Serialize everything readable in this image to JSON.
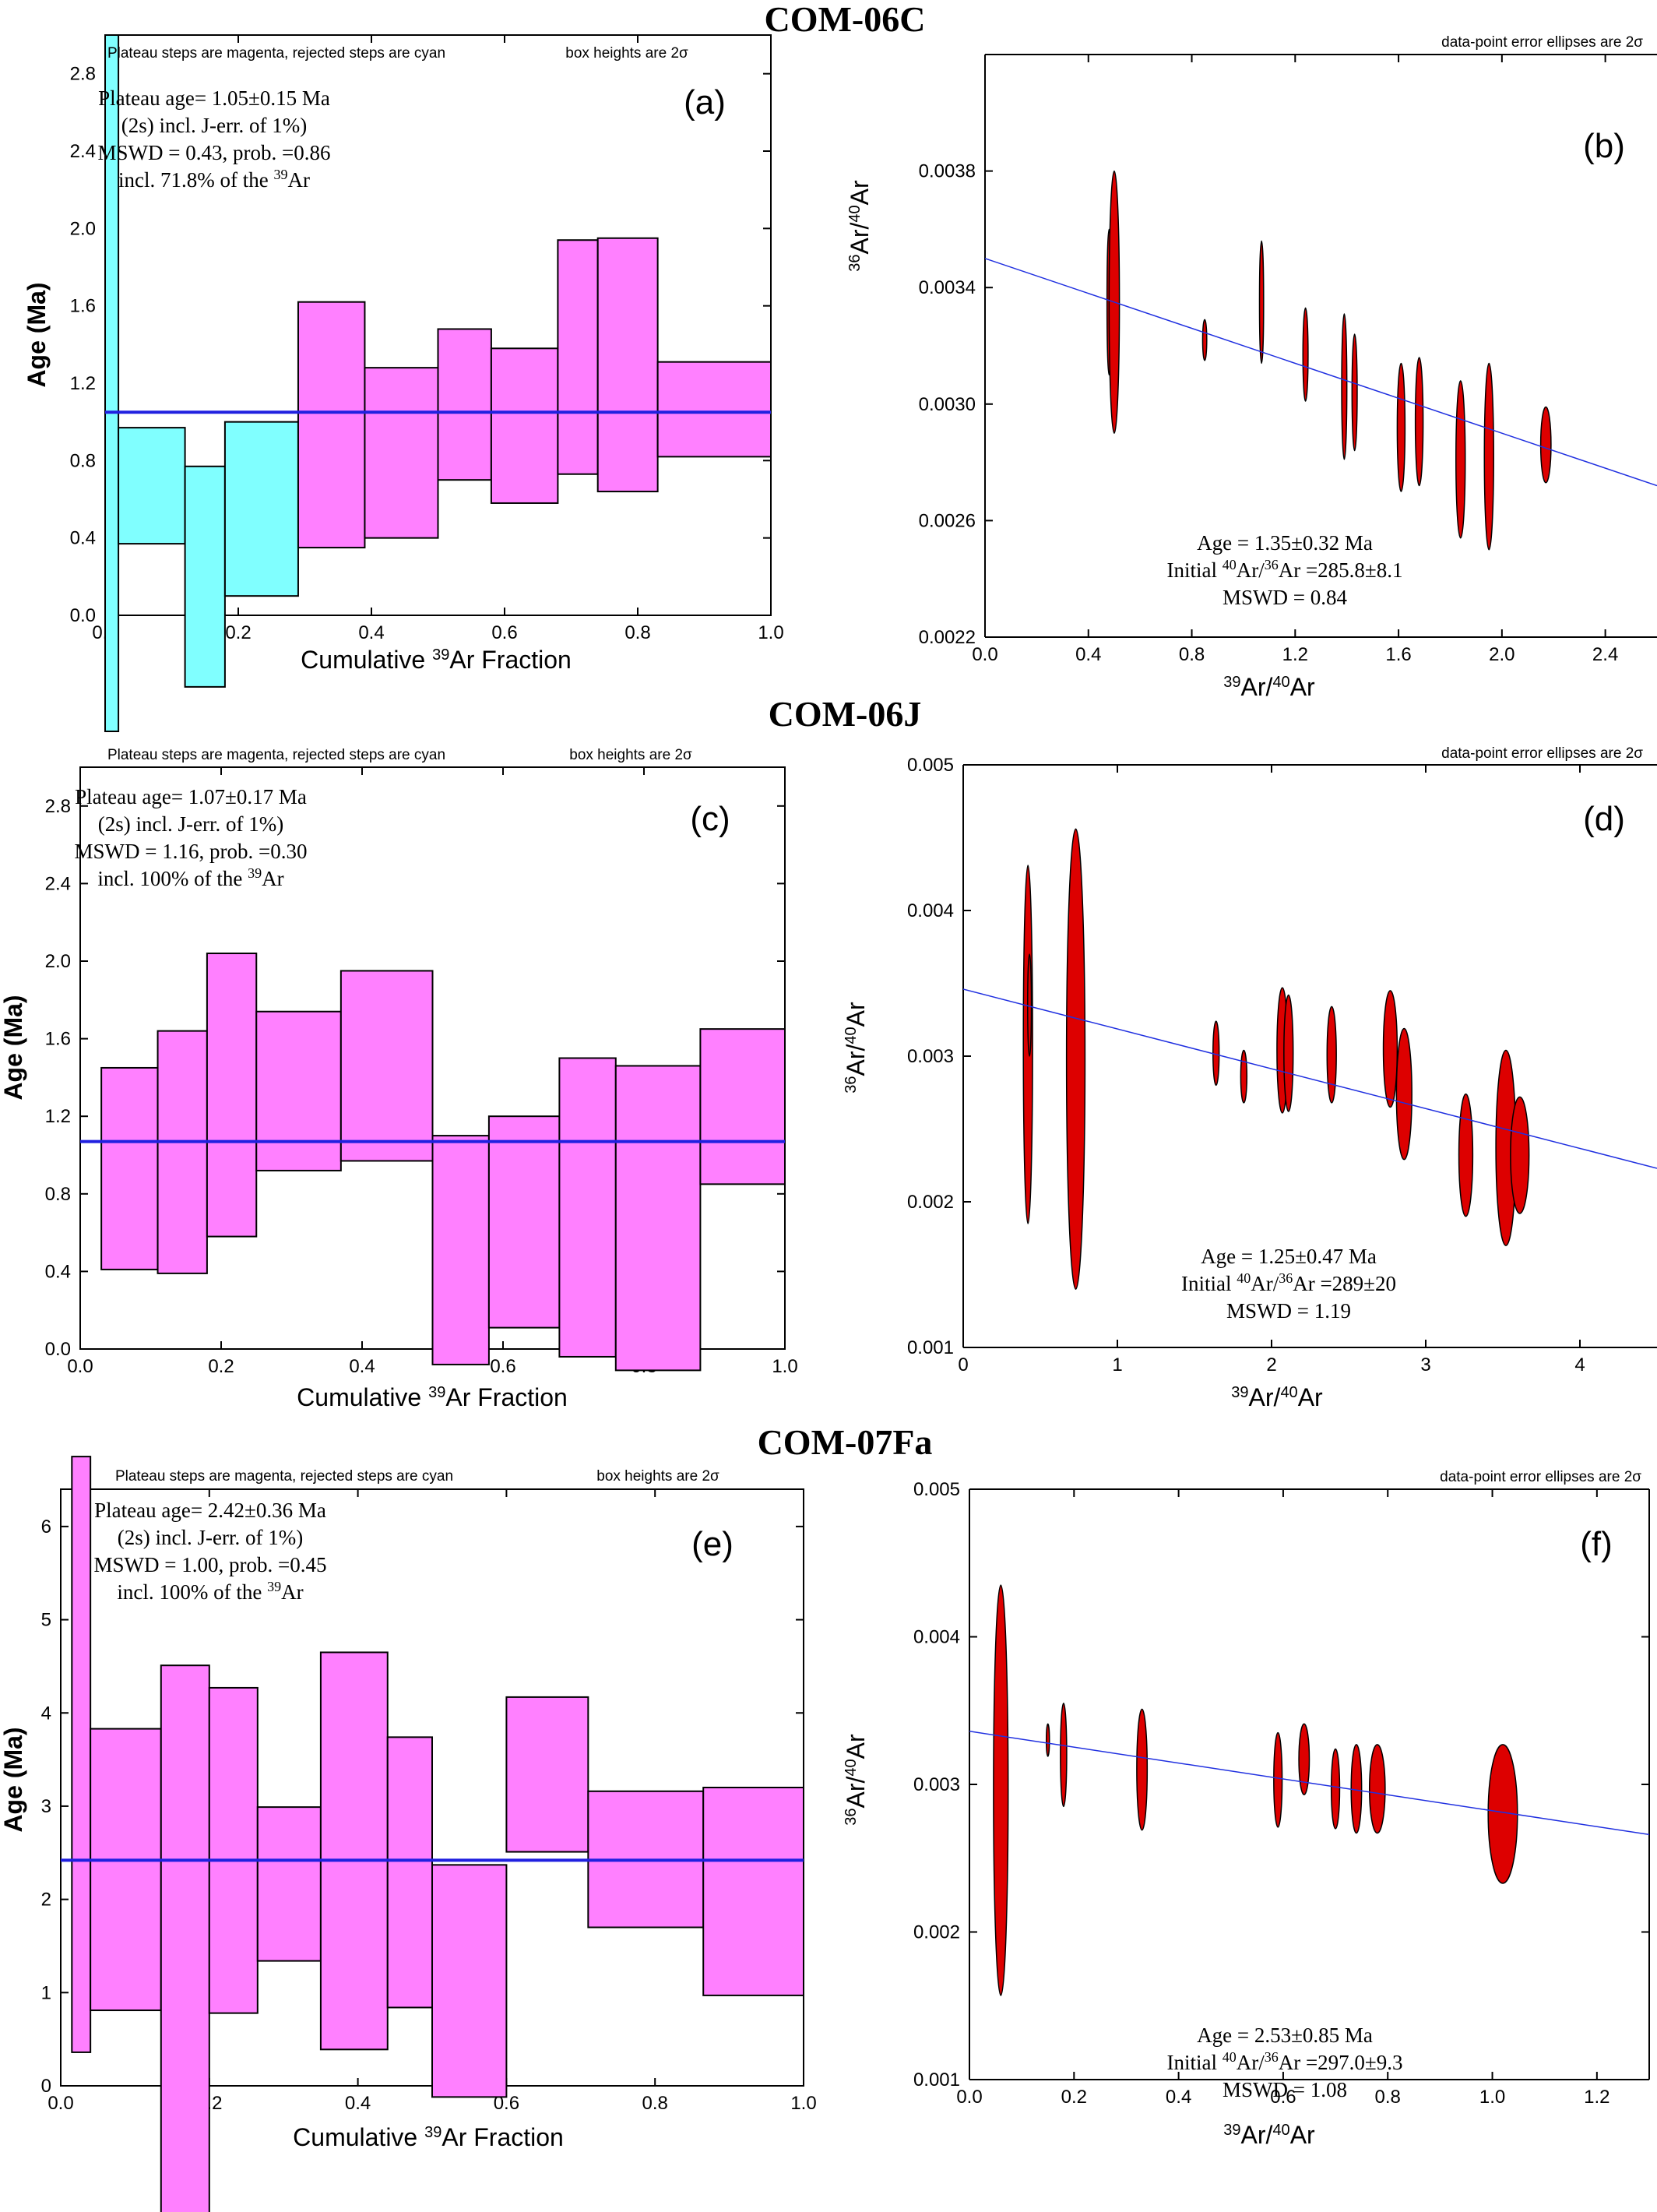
{
  "sample_titles": [
    "COM-06C",
    "COM-06J",
    "COM-07Fa"
  ],
  "chart_data": [
    {
      "panel": "(a)",
      "type": "bar",
      "subtype": "age-spectrum",
      "sample": "COM-06C",
      "xlabel": "Cumulative ³⁹Ar Fraction",
      "ylabel": "Age (Ma)",
      "xlim": [
        0,
        1
      ],
      "ylim": [
        0,
        3
      ],
      "xticks": [
        "0.0",
        "0.2",
        "0.4",
        "0.6",
        "0.8",
        "1.0"
      ],
      "yticks": [
        "0.0",
        "0.4",
        "0.8",
        "1.2",
        "1.6",
        "2.0",
        "2.4",
        "2.8"
      ],
      "notes": [
        "Plateau steps are magenta, rejected steps are cyan",
        "box heights are 2σ"
      ],
      "annotation": [
        "Plateau age= 1.05±0.15 Ma",
        "(2s) incl. J-err. of 1%)",
        "MSWD = 0.43, prob. =0.86",
        "incl. 71.8% of the ³⁹Ar"
      ],
      "plateau_age": 1.05,
      "colors": {
        "plateau": "#ff80ff",
        "rejected": "#80ffff",
        "line": "#2020e0"
      },
      "steps": [
        {
          "x0": 0.0,
          "x1": 0.02,
          "low": -0.6,
          "high": 3.0,
          "plateau": false
        },
        {
          "x0": 0.02,
          "x1": 0.12,
          "low": 0.37,
          "high": 0.97,
          "plateau": false
        },
        {
          "x0": 0.12,
          "x1": 0.18,
          "low": -0.37,
          "high": 0.77,
          "plateau": false
        },
        {
          "x0": 0.18,
          "x1": 0.29,
          "low": 0.1,
          "high": 1.0,
          "plateau": false
        },
        {
          "x0": 0.29,
          "x1": 0.39,
          "low": 0.35,
          "high": 1.62,
          "plateau": true
        },
        {
          "x0": 0.39,
          "x1": 0.5,
          "low": 0.4,
          "high": 1.28,
          "plateau": true
        },
        {
          "x0": 0.5,
          "x1": 0.58,
          "low": 0.7,
          "high": 1.48,
          "plateau": true
        },
        {
          "x0": 0.58,
          "x1": 0.68,
          "low": 0.58,
          "high": 1.38,
          "plateau": true
        },
        {
          "x0": 0.68,
          "x1": 0.74,
          "low": 0.73,
          "high": 1.94,
          "plateau": true
        },
        {
          "x0": 0.74,
          "x1": 0.83,
          "low": 0.64,
          "high": 1.95,
          "plateau": true
        },
        {
          "x0": 0.83,
          "x1": 1.0,
          "low": 0.82,
          "high": 1.31,
          "plateau": true
        }
      ]
    },
    {
      "panel": "(b)",
      "type": "scatter",
      "subtype": "isochron",
      "sample": "COM-06C",
      "xlabel": "³⁹Ar/⁴⁰Ar",
      "ylabel": "³⁶Ar/⁴⁰Ar",
      "xlim": [
        0,
        2.6
      ],
      "ylim": [
        0.0022,
        0.0042
      ],
      "xticks": [
        "0.0",
        "0.4",
        "0.8",
        "1.2",
        "1.6",
        "2.0",
        "2.4"
      ],
      "yticks": [
        "0.0022",
        "0.0026",
        "0.0030",
        "0.0034",
        "0.0038"
      ],
      "notes": [
        "data-point error ellipses are 2σ"
      ],
      "annotation": [
        "Age = 1.35±0.32 Ma",
        "Initial ⁴⁰Ar/³⁶Ar =285.8±8.1",
        "MSWD = 0.84"
      ],
      "fit_line": {
        "x": [
          0,
          2.6
        ],
        "y": [
          0.0035,
          0.00272
        ]
      },
      "colors": {
        "ellipse": "#dd0000",
        "line": "#2030e0"
      },
      "points": [
        {
          "x": 0.48,
          "y": 0.00335,
          "sx": 0.008,
          "sy": 0.00025
        },
        {
          "x": 0.5,
          "y": 0.00335,
          "sx": 0.02,
          "sy": 0.00045
        },
        {
          "x": 0.85,
          "y": 0.00322,
          "sx": 0.008,
          "sy": 7e-05
        },
        {
          "x": 1.07,
          "y": 0.00335,
          "sx": 0.008,
          "sy": 0.00021
        },
        {
          "x": 1.24,
          "y": 0.00317,
          "sx": 0.01,
          "sy": 0.00016
        },
        {
          "x": 1.39,
          "y": 0.00306,
          "sx": 0.01,
          "sy": 0.00025
        },
        {
          "x": 1.43,
          "y": 0.00304,
          "sx": 0.01,
          "sy": 0.0002
        },
        {
          "x": 1.61,
          "y": 0.00292,
          "sx": 0.015,
          "sy": 0.00022
        },
        {
          "x": 1.68,
          "y": 0.00294,
          "sx": 0.015,
          "sy": 0.00022
        },
        {
          "x": 1.84,
          "y": 0.00281,
          "sx": 0.018,
          "sy": 0.00027
        },
        {
          "x": 1.95,
          "y": 0.00282,
          "sx": 0.018,
          "sy": 0.00032
        },
        {
          "x": 2.17,
          "y": 0.00286,
          "sx": 0.02,
          "sy": 0.00013
        }
      ]
    },
    {
      "panel": "(c)",
      "type": "bar",
      "subtype": "age-spectrum",
      "sample": "COM-06J",
      "xlabel": "Cumulative ³⁹Ar Fraction",
      "ylabel": "Age (Ma)",
      "xlim": [
        0,
        1
      ],
      "ylim": [
        0,
        3
      ],
      "xticks": [
        "0.0",
        "0.2",
        "0.4",
        "0.6",
        "0.8",
        "1.0"
      ],
      "yticks": [
        "0.0",
        "0.4",
        "0.8",
        "1.2",
        "1.6",
        "2.0",
        "2.4",
        "2.8"
      ],
      "notes": [
        "Plateau steps are magenta, rejected steps are cyan",
        "box heights are 2σ"
      ],
      "annotation": [
        "Plateau age= 1.07±0.17 Ma",
        "(2s) incl. J-err. of 1%)",
        "MSWD = 1.16, prob. =0.30",
        "incl. 100% of the ³⁹Ar"
      ],
      "plateau_age": 1.07,
      "colors": {
        "plateau": "#ff80ff",
        "rejected": "#80ffff",
        "line": "#2020e0"
      },
      "steps": [
        {
          "x0": 0.03,
          "x1": 0.11,
          "low": 0.41,
          "high": 1.45,
          "plateau": true
        },
        {
          "x0": 0.11,
          "x1": 0.18,
          "low": 0.39,
          "high": 1.64,
          "plateau": true
        },
        {
          "x0": 0.18,
          "x1": 0.25,
          "low": 0.58,
          "high": 2.04,
          "plateau": true
        },
        {
          "x0": 0.25,
          "x1": 0.37,
          "low": 0.92,
          "high": 1.74,
          "plateau": true
        },
        {
          "x0": 0.37,
          "x1": 0.5,
          "low": 0.97,
          "high": 1.95,
          "plateau": true
        },
        {
          "x0": 0.5,
          "x1": 0.58,
          "low": -0.08,
          "high": 1.1,
          "plateau": true
        },
        {
          "x0": 0.58,
          "x1": 0.68,
          "low": 0.11,
          "high": 1.2,
          "plateau": true
        },
        {
          "x0": 0.68,
          "x1": 0.76,
          "low": -0.04,
          "high": 1.5,
          "plateau": true
        },
        {
          "x0": 0.76,
          "x1": 0.88,
          "low": -0.11,
          "high": 1.46,
          "plateau": true
        },
        {
          "x0": 0.88,
          "x1": 1.0,
          "low": 0.85,
          "high": 1.65,
          "plateau": true
        }
      ]
    },
    {
      "panel": "(d)",
      "type": "scatter",
      "subtype": "isochron",
      "sample": "COM-06J",
      "xlabel": "³⁹Ar/⁴⁰Ar",
      "ylabel": "³⁶Ar/⁴⁰Ar",
      "xlim": [
        0,
        4.5
      ],
      "ylim": [
        0.001,
        0.005
      ],
      "xticks": [
        "0",
        "1",
        "2",
        "3",
        "4"
      ],
      "yticks": [
        "0.001",
        "0.002",
        "0.003",
        "0.004",
        "0.005"
      ],
      "notes": [
        "data-point error ellipses are 2σ"
      ],
      "annotation": [
        "Age = 1.25±0.47 Ma",
        "Initial ⁴⁰Ar/³⁶Ar =289±20",
        "MSWD = 1.19"
      ],
      "fit_line": {
        "x": [
          0,
          4.5
        ],
        "y": [
          0.00346,
          0.00223
        ]
      },
      "colors": {
        "ellipse": "#dd0000",
        "line": "#2030e0"
      },
      "points": [
        {
          "x": 0.42,
          "y": 0.00308,
          "sx": 0.03,
          "sy": 0.00123
        },
        {
          "x": 0.43,
          "y": 0.00335,
          "sx": 0.012,
          "sy": 0.00035
        },
        {
          "x": 0.73,
          "y": 0.00298,
          "sx": 0.06,
          "sy": 0.00158
        },
        {
          "x": 1.64,
          "y": 0.00302,
          "sx": 0.02,
          "sy": 0.00022
        },
        {
          "x": 1.82,
          "y": 0.00286,
          "sx": 0.02,
          "sy": 0.00018
        },
        {
          "x": 2.07,
          "y": 0.00304,
          "sx": 0.035,
          "sy": 0.00043
        },
        {
          "x": 2.11,
          "y": 0.00302,
          "sx": 0.03,
          "sy": 0.0004
        },
        {
          "x": 2.39,
          "y": 0.00301,
          "sx": 0.03,
          "sy": 0.00033
        },
        {
          "x": 2.77,
          "y": 0.00305,
          "sx": 0.045,
          "sy": 0.0004
        },
        {
          "x": 2.86,
          "y": 0.00274,
          "sx": 0.05,
          "sy": 0.00045
        },
        {
          "x": 3.26,
          "y": 0.00232,
          "sx": 0.045,
          "sy": 0.00042
        },
        {
          "x": 3.52,
          "y": 0.00237,
          "sx": 0.065,
          "sy": 0.00067
        },
        {
          "x": 3.61,
          "y": 0.00232,
          "sx": 0.06,
          "sy": 0.0004
        }
      ]
    },
    {
      "panel": "(e)",
      "type": "bar",
      "subtype": "age-spectrum",
      "sample": "COM-07Fa",
      "xlabel": "Cumulative ³⁹Ar Fraction",
      "ylabel": "Age (Ma)",
      "xlim": [
        0,
        1
      ],
      "ylim": [
        0,
        6.4
      ],
      "xticks": [
        "0.0",
        "0.2",
        "0.4",
        "0.6",
        "0.8",
        "1.0"
      ],
      "yticks": [
        "0",
        "1",
        "2",
        "3",
        "4",
        "5",
        "6"
      ],
      "notes": [
        "Plateau steps are magenta, rejected steps are cyan",
        "box heights are 2σ"
      ],
      "annotation": [
        "Plateau age= 2.42±0.36 Ma",
        "(2s) incl. J-err. of 1%)",
        "MSWD = 1.00, prob. =0.45",
        "incl. 100% of the ³⁹Ar"
      ],
      "plateau_age": 2.42,
      "colors": {
        "plateau": "#ff80ff",
        "rejected": "#80ffff",
        "line": "#2020e0"
      },
      "steps": [
        {
          "x0": 0.015,
          "x1": 0.04,
          "low": 0.36,
          "high": 6.75,
          "plateau": true
        },
        {
          "x0": 0.04,
          "x1": 0.135,
          "low": 0.81,
          "high": 3.83,
          "plateau": true
        },
        {
          "x0": 0.135,
          "x1": 0.2,
          "low": -1.55,
          "high": 4.51,
          "plateau": true
        },
        {
          "x0": 0.2,
          "x1": 0.265,
          "low": 0.78,
          "high": 4.27,
          "plateau": true
        },
        {
          "x0": 0.265,
          "x1": 0.35,
          "low": 1.34,
          "high": 2.99,
          "plateau": true
        },
        {
          "x0": 0.35,
          "x1": 0.44,
          "low": 0.39,
          "high": 4.65,
          "plateau": true
        },
        {
          "x0": 0.44,
          "x1": 0.5,
          "low": 0.84,
          "high": 3.74,
          "plateau": true
        },
        {
          "x0": 0.5,
          "x1": 0.6,
          "low": -0.12,
          "high": 2.37,
          "plateau": true
        },
        {
          "x0": 0.6,
          "x1": 0.71,
          "low": 2.51,
          "high": 4.17,
          "plateau": true
        },
        {
          "x0": 0.71,
          "x1": 0.865,
          "low": 1.7,
          "high": 3.16,
          "plateau": true
        },
        {
          "x0": 0.865,
          "x1": 1.0,
          "low": 0.97,
          "high": 3.2,
          "plateau": true
        }
      ]
    },
    {
      "panel": "(f)",
      "type": "scatter",
      "subtype": "isochron",
      "sample": "COM-07Fa",
      "xlabel": "³⁹Ar/⁴⁰Ar",
      "ylabel": "³⁶Ar/⁴⁰Ar",
      "xlim": [
        0,
        1.3
      ],
      "ylim": [
        0.001,
        0.005
      ],
      "xticks": [
        "0.0",
        "0.2",
        "0.4",
        "0.6",
        "0.8",
        "1.0",
        "1.2"
      ],
      "yticks": [
        "0.001",
        "0.002",
        "0.003",
        "0.004",
        "0.005"
      ],
      "notes": [
        "data-point error ellipses are 2σ"
      ],
      "annotation": [
        "Age = 2.53±0.85 Ma",
        "Initial ⁴⁰Ar/³⁶Ar =297.0±9.3",
        "MSWD = 1.08"
      ],
      "fit_line": {
        "x": [
          0,
          1.3
        ],
        "y": [
          0.00336,
          0.00266
        ]
      },
      "colors": {
        "ellipse": "#dd0000",
        "line": "#2030e0"
      },
      "points": [
        {
          "x": 0.06,
          "y": 0.00296,
          "sx": 0.014,
          "sy": 0.00139
        },
        {
          "x": 0.15,
          "y": 0.0033,
          "sx": 0.002,
          "sy": 0.00011
        },
        {
          "x": 0.18,
          "y": 0.0032,
          "sx": 0.006,
          "sy": 0.00035
        },
        {
          "x": 0.33,
          "y": 0.0031,
          "sx": 0.01,
          "sy": 0.00041
        },
        {
          "x": 0.59,
          "y": 0.00303,
          "sx": 0.008,
          "sy": 0.00032
        },
        {
          "x": 0.64,
          "y": 0.00317,
          "sx": 0.01,
          "sy": 0.00024
        },
        {
          "x": 0.7,
          "y": 0.00297,
          "sx": 0.008,
          "sy": 0.00027
        },
        {
          "x": 0.74,
          "y": 0.00297,
          "sx": 0.01,
          "sy": 0.0003
        },
        {
          "x": 0.78,
          "y": 0.00297,
          "sx": 0.015,
          "sy": 0.0003
        },
        {
          "x": 1.02,
          "y": 0.0028,
          "sx": 0.028,
          "sy": 0.00047
        }
      ]
    }
  ]
}
